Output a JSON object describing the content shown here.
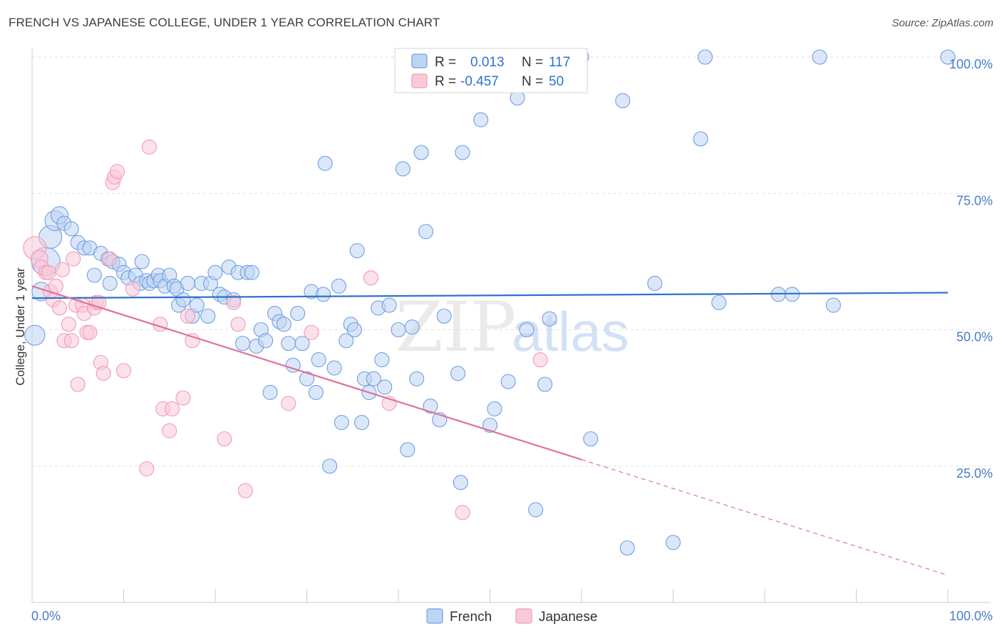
{
  "title": "FRENCH VS JAPANESE COLLEGE, UNDER 1 YEAR CORRELATION CHART",
  "source": "Source: ZipAtlas.com",
  "watermark": {
    "zip": "ZIP",
    "atlas": "atlas"
  },
  "colors": {
    "french": "#6f9fe3",
    "french_line": "#2e72cc",
    "japanese": "#f19ab7",
    "japanese_line": "#e0719a",
    "tick": "#4a7cc9"
  },
  "legend": {
    "french": {
      "r_label": "R =",
      "r_value": "0.013",
      "n_label": "N =",
      "n_value": "117"
    },
    "japanese": {
      "r_label": "R =",
      "r_value": "-0.457",
      "n_label": "N =",
      "n_value": "50"
    }
  },
  "chart_data": {
    "type": "scatter",
    "title": "FRENCH VS JAPANESE COLLEGE, UNDER 1 YEAR CORRELATION CHART",
    "xlabel": "",
    "ylabel": "College, Under 1 year",
    "xlim": [
      0,
      100
    ],
    "ylim": [
      0,
      102
    ],
    "x_tick_labels": [
      "0.0%",
      "100.0%"
    ],
    "y_ticks": [
      25,
      50,
      75,
      100
    ],
    "y_tick_labels": [
      "25.0%",
      "50.0%",
      "75.0%",
      "100.0%"
    ],
    "grid": true,
    "series": [
      {
        "name": "French",
        "r": 0.013,
        "n": 117,
        "trend": {
          "x": [
            0,
            100
          ],
          "y": [
            55.8,
            56.8
          ],
          "dashed_from": null
        },
        "points": [
          [
            0.3,
            49,
            14
          ],
          [
            1,
            57,
            13
          ],
          [
            1.5,
            62.5,
            20
          ],
          [
            2,
            67,
            16
          ],
          [
            2.5,
            70,
            14
          ],
          [
            3,
            71,
            12
          ],
          [
            3.5,
            69.5,
            10
          ],
          [
            4.3,
            68.5,
            10
          ],
          [
            5,
            66,
            10
          ],
          [
            5.7,
            65,
            10
          ],
          [
            6.3,
            65,
            10
          ],
          [
            6.8,
            60,
            10
          ],
          [
            7.5,
            64,
            10
          ],
          [
            8.3,
            63,
            10
          ],
          [
            8.5,
            58.5,
            10
          ],
          [
            8.8,
            62.5,
            10
          ],
          [
            9.5,
            62,
            10
          ],
          [
            10,
            60.5,
            10
          ],
          [
            10.5,
            59.5,
            10
          ],
          [
            11.3,
            60,
            10
          ],
          [
            11.8,
            58.5,
            10
          ],
          [
            12,
            62.5,
            10
          ],
          [
            12.5,
            59,
            10
          ],
          [
            12.8,
            58.5,
            10
          ],
          [
            13.3,
            59,
            10
          ],
          [
            13.8,
            60,
            10
          ],
          [
            14,
            59,
            10
          ],
          [
            14.5,
            58,
            10
          ],
          [
            15,
            60,
            10
          ],
          [
            15.5,
            58,
            10
          ],
          [
            15.8,
            57.5,
            10
          ],
          [
            16,
            54.5,
            10
          ],
          [
            16.5,
            55.5,
            10
          ],
          [
            17,
            58.5,
            10
          ],
          [
            17.5,
            52.5,
            10
          ],
          [
            18,
            54.5,
            10
          ],
          [
            18.5,
            58.5,
            10
          ],
          [
            19.2,
            52.5,
            10
          ],
          [
            19.5,
            58.5,
            10
          ],
          [
            20,
            60.5,
            10
          ],
          [
            20.5,
            56.5,
            10
          ],
          [
            21,
            56,
            10
          ],
          [
            21.5,
            61.5,
            10
          ],
          [
            22,
            55.5,
            10
          ],
          [
            22.5,
            60.5,
            10
          ],
          [
            23,
            47.5,
            10
          ],
          [
            23.5,
            60.5,
            10
          ],
          [
            24,
            60.5,
            10
          ],
          [
            24.5,
            47,
            10
          ],
          [
            25,
            50,
            10
          ],
          [
            25.5,
            48,
            10
          ],
          [
            26,
            38.5,
            10
          ],
          [
            26.5,
            53,
            10
          ],
          [
            27,
            51.5,
            10
          ],
          [
            27.5,
            51,
            10
          ],
          [
            28,
            47.5,
            10
          ],
          [
            28.5,
            43.5,
            10
          ],
          [
            29,
            53,
            10
          ],
          [
            29.5,
            47.5,
            10
          ],
          [
            30,
            41,
            10
          ],
          [
            30.5,
            57,
            10
          ],
          [
            31,
            38.5,
            10
          ],
          [
            31.3,
            44.5,
            10
          ],
          [
            31.8,
            56.5,
            10
          ],
          [
            32,
            80.5,
            10
          ],
          [
            32.5,
            25,
            10
          ],
          [
            33,
            43,
            10
          ],
          [
            33.5,
            58,
            10
          ],
          [
            33.8,
            33,
            10
          ],
          [
            34.3,
            48,
            10
          ],
          [
            34.8,
            51,
            10
          ],
          [
            35.2,
            50,
            10
          ],
          [
            35.5,
            64.5,
            10
          ],
          [
            36,
            33,
            10
          ],
          [
            36.3,
            41,
            10
          ],
          [
            36.8,
            38.5,
            10
          ],
          [
            37.3,
            41,
            10
          ],
          [
            37.8,
            54,
            10
          ],
          [
            38.2,
            44.5,
            10
          ],
          [
            38.5,
            39.5,
            10
          ],
          [
            39,
            54.5,
            10
          ],
          [
            40,
            50,
            10
          ],
          [
            40.5,
            79.5,
            10
          ],
          [
            41,
            28,
            10
          ],
          [
            41.5,
            50.5,
            10
          ],
          [
            42,
            41,
            10
          ],
          [
            42.5,
            82.5,
            10
          ],
          [
            43,
            68,
            10
          ],
          [
            43.5,
            36,
            10
          ],
          [
            44.5,
            33.5,
            10
          ],
          [
            45,
            52.5,
            10
          ],
          [
            46.5,
            42,
            10
          ],
          [
            46.8,
            22,
            10
          ],
          [
            47,
            82.5,
            10
          ],
          [
            49,
            88.5,
            10
          ],
          [
            50,
            32.5,
            10
          ],
          [
            50.5,
            35.5,
            10
          ],
          [
            52,
            40.5,
            10
          ],
          [
            53,
            92.5,
            10
          ],
          [
            54,
            50,
            10
          ],
          [
            55,
            17,
            10
          ],
          [
            56,
            40,
            10
          ],
          [
            56.5,
            52,
            10
          ],
          [
            60,
            100,
            10
          ],
          [
            61,
            30,
            10
          ],
          [
            64.5,
            92,
            10
          ],
          [
            65,
            10,
            10
          ],
          [
            68,
            58.5,
            10
          ],
          [
            70,
            11,
            10
          ],
          [
            73,
            85,
            10
          ],
          [
            73.5,
            100,
            10
          ],
          [
            75,
            55,
            10
          ],
          [
            81.5,
            56.5,
            10
          ],
          [
            83,
            56.5,
            10
          ],
          [
            86,
            100,
            10
          ],
          [
            87.5,
            54.5,
            10
          ],
          [
            100,
            100,
            10
          ]
        ]
      },
      {
        "name": "Japanese",
        "r": -0.457,
        "n": 50,
        "trend": {
          "x": [
            0,
            100
          ],
          "y": [
            58,
            5
          ],
          "dashed_from": 60
        },
        "points": [
          [
            0.3,
            65,
            16
          ],
          [
            0.8,
            63,
            12
          ],
          [
            1,
            61.5,
            10
          ],
          [
            1.5,
            60.5,
            10
          ],
          [
            1.8,
            60.5,
            10
          ],
          [
            2,
            57,
            10
          ],
          [
            2.3,
            55.5,
            10
          ],
          [
            2.6,
            58,
            10
          ],
          [
            3,
            54,
            10
          ],
          [
            3.3,
            61,
            10
          ],
          [
            3.5,
            48,
            10
          ],
          [
            4,
            51,
            10
          ],
          [
            4.3,
            48,
            10
          ],
          [
            4.5,
            63,
            10
          ],
          [
            4.8,
            54.5,
            10
          ],
          [
            5,
            40,
            10
          ],
          [
            5.5,
            54.5,
            10
          ],
          [
            5.7,
            53,
            10
          ],
          [
            6,
            49.5,
            10
          ],
          [
            6.3,
            49.5,
            10
          ],
          [
            6.8,
            54,
            10
          ],
          [
            7,
            55,
            10
          ],
          [
            7.3,
            55,
            10
          ],
          [
            7.5,
            44,
            10
          ],
          [
            7.8,
            42,
            10
          ],
          [
            8.5,
            63,
            10
          ],
          [
            8.8,
            77,
            10
          ],
          [
            9,
            78,
            10
          ],
          [
            9.3,
            79,
            10
          ],
          [
            10,
            42.5,
            10
          ],
          [
            11,
            57.5,
            10
          ],
          [
            12.5,
            24.5,
            10
          ],
          [
            12.8,
            83.5,
            10
          ],
          [
            14,
            51,
            10
          ],
          [
            14.3,
            35.5,
            10
          ],
          [
            15,
            31.5,
            10
          ],
          [
            15.3,
            35.5,
            10
          ],
          [
            16.5,
            37.5,
            10
          ],
          [
            17,
            52.5,
            10
          ],
          [
            17.5,
            48,
            10
          ],
          [
            21,
            30,
            10
          ],
          [
            22,
            55,
            10
          ],
          [
            22.5,
            51,
            10
          ],
          [
            23.3,
            20.5,
            10
          ],
          [
            28,
            36.5,
            10
          ],
          [
            30.5,
            49.5,
            10
          ],
          [
            37,
            59.5,
            10
          ],
          [
            39,
            36.5,
            10
          ],
          [
            47,
            16.5,
            10
          ],
          [
            55.5,
            44.5,
            10
          ]
        ]
      }
    ]
  },
  "bottom_legend": {
    "french": "French",
    "japanese": "Japanese"
  }
}
